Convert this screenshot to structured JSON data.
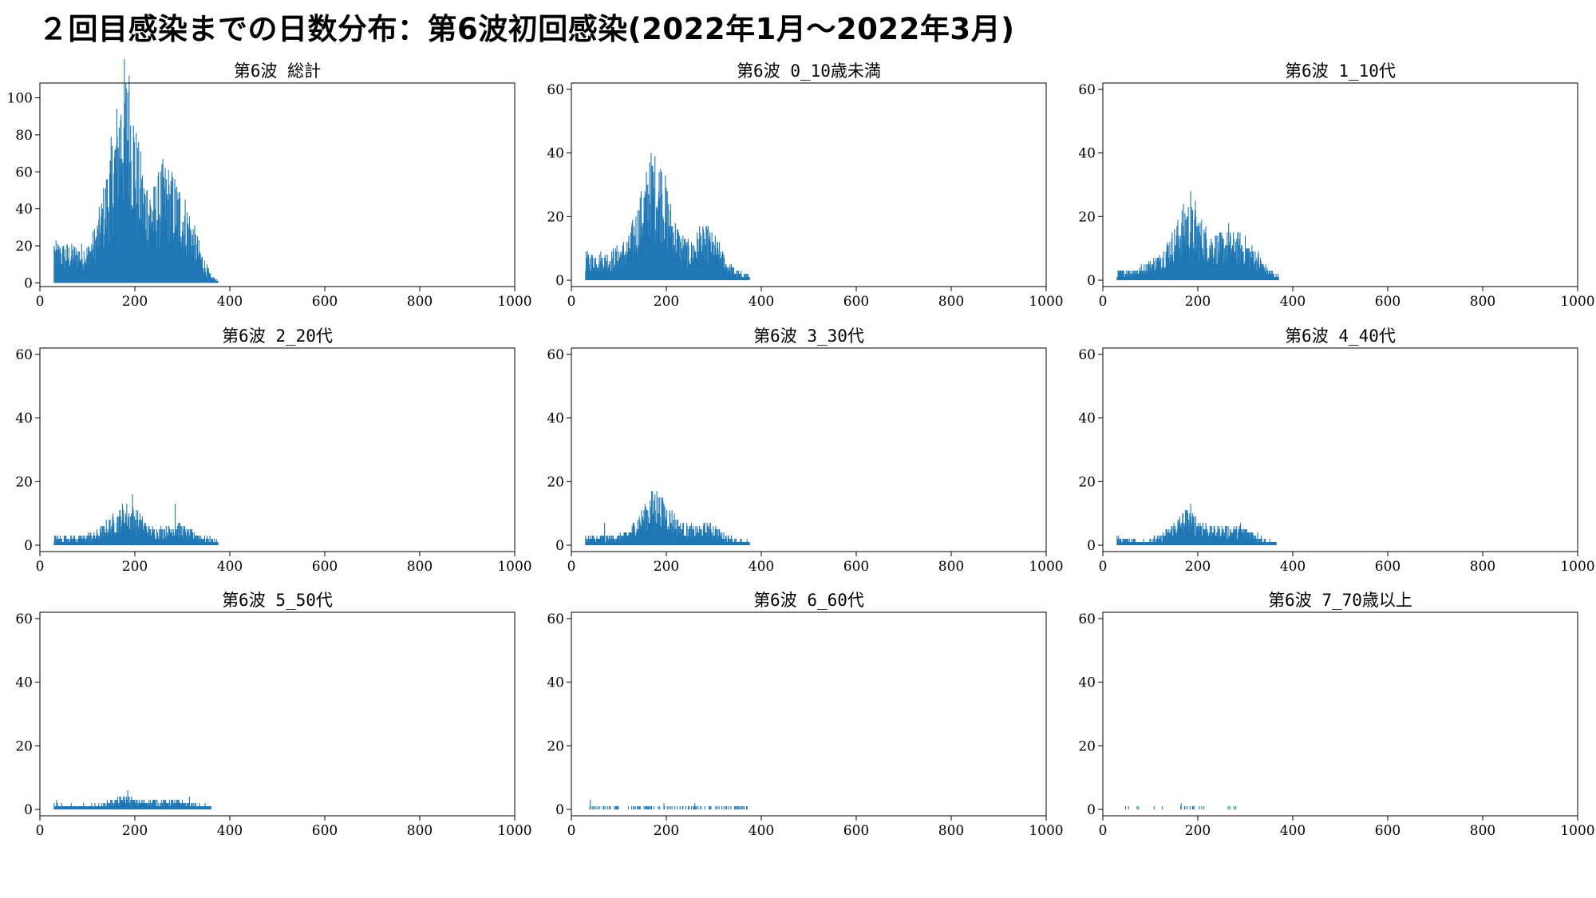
{
  "figure": {
    "suptitle": "２回目感染までの日数分布：第6波初回感染(2022年1月～2022年3月)",
    "bar_color": "#1f77b4"
  },
  "chart_data": [
    {
      "type": "bar",
      "title": "第6波 総計",
      "xlim": [
        0,
        1000
      ],
      "ylim": [
        -2,
        108
      ],
      "xticks": [
        0,
        200,
        400,
        600,
        800,
        1000
      ],
      "yticks": [
        0,
        20,
        40,
        60,
        80,
        100
      ],
      "x_range": [
        30,
        375
      ],
      "profile": [
        [
          30,
          15
        ],
        [
          60,
          14
        ],
        [
          100,
          14
        ],
        [
          120,
          22
        ],
        [
          140,
          40
        ],
        [
          160,
          62
        ],
        [
          175,
          80
        ],
        [
          190,
          78
        ],
        [
          205,
          52
        ],
        [
          220,
          40
        ],
        [
          240,
          35
        ],
        [
          260,
          44
        ],
        [
          280,
          40
        ],
        [
          300,
          34
        ],
        [
          320,
          24
        ],
        [
          340,
          12
        ],
        [
          360,
          3
        ],
        [
          375,
          1
        ]
      ],
      "peaks": [
        [
          30,
          20
        ],
        [
          185,
          103
        ],
        [
          170,
          88
        ],
        [
          260,
          57
        ],
        [
          225,
          50
        ]
      ]
    },
    {
      "type": "bar",
      "title": "第6波 0_10歳未満",
      "xlim": [
        0,
        1000
      ],
      "ylim": [
        -2,
        62
      ],
      "xticks": [
        0,
        200,
        400,
        600,
        800,
        1000
      ],
      "yticks": [
        0,
        20,
        40,
        60
      ],
      "x_range": [
        30,
        375
      ],
      "profile": [
        [
          30,
          6
        ],
        [
          80,
          6
        ],
        [
          120,
          9
        ],
        [
          150,
          20
        ],
        [
          170,
          27
        ],
        [
          190,
          25
        ],
        [
          210,
          16
        ],
        [
          230,
          10
        ],
        [
          250,
          8
        ],
        [
          270,
          11
        ],
        [
          290,
          11
        ],
        [
          310,
          8
        ],
        [
          330,
          4
        ],
        [
          350,
          2
        ],
        [
          375,
          1
        ]
      ],
      "peaks": [
        [
          165,
          37
        ],
        [
          190,
          34
        ],
        [
          270,
          17
        ]
      ]
    },
    {
      "type": "bar",
      "title": "第6波 1_10代",
      "xlim": [
        0,
        1000
      ],
      "ylim": [
        -2,
        62
      ],
      "xticks": [
        0,
        200,
        400,
        600,
        800,
        1000
      ],
      "yticks": [
        0,
        20,
        40,
        60
      ],
      "x_range": [
        30,
        370
      ],
      "profile": [
        [
          30,
          2
        ],
        [
          80,
          3
        ],
        [
          120,
          6
        ],
        [
          150,
          11
        ],
        [
          175,
          17
        ],
        [
          200,
          14
        ],
        [
          230,
          10
        ],
        [
          260,
          10
        ],
        [
          290,
          10
        ],
        [
          320,
          7
        ],
        [
          345,
          3
        ],
        [
          370,
          1
        ]
      ],
      "peaks": [
        [
          185,
          28
        ],
        [
          195,
          25
        ],
        [
          265,
          18
        ]
      ]
    },
    {
      "type": "bar",
      "title": "第6波 2_20代",
      "xlim": [
        0,
        1000
      ],
      "ylim": [
        -2,
        62
      ],
      "xticks": [
        0,
        200,
        400,
        600,
        800,
        1000
      ],
      "yticks": [
        0,
        20,
        40,
        60
      ],
      "x_range": [
        30,
        375
      ],
      "profile": [
        [
          30,
          2
        ],
        [
          80,
          2
        ],
        [
          120,
          3
        ],
        [
          150,
          6
        ],
        [
          180,
          9
        ],
        [
          200,
          8
        ],
        [
          230,
          4
        ],
        [
          260,
          4
        ],
        [
          290,
          5
        ],
        [
          320,
          3
        ],
        [
          350,
          2
        ],
        [
          375,
          1
        ]
      ],
      "peaks": [
        [
          195,
          16
        ],
        [
          285,
          13
        ]
      ]
    },
    {
      "type": "bar",
      "title": "第6波 3_30代",
      "xlim": [
        0,
        1000
      ],
      "ylim": [
        -2,
        62
      ],
      "xticks": [
        0,
        200,
        400,
        600,
        800,
        1000
      ],
      "yticks": [
        0,
        20,
        40,
        60
      ],
      "x_range": [
        30,
        375
      ],
      "profile": [
        [
          30,
          2
        ],
        [
          80,
          2
        ],
        [
          120,
          3
        ],
        [
          150,
          8
        ],
        [
          175,
          12
        ],
        [
          200,
          9
        ],
        [
          230,
          5
        ],
        [
          260,
          4
        ],
        [
          290,
          5
        ],
        [
          320,
          3
        ],
        [
          350,
          1
        ],
        [
          375,
          1
        ]
      ],
      "peaks": [
        [
          180,
          17
        ],
        [
          70,
          7
        ]
      ]
    },
    {
      "type": "bar",
      "title": "第6波 4_40代",
      "xlim": [
        0,
        1000
      ],
      "ylim": [
        -2,
        62
      ],
      "xticks": [
        0,
        200,
        400,
        600,
        800,
        1000
      ],
      "yticks": [
        0,
        20,
        40,
        60
      ],
      "x_range": [
        30,
        365
      ],
      "profile": [
        [
          30,
          2
        ],
        [
          80,
          1
        ],
        [
          120,
          2
        ],
        [
          150,
          5
        ],
        [
          175,
          8
        ],
        [
          200,
          6
        ],
        [
          230,
          4
        ],
        [
          260,
          4
        ],
        [
          290,
          4
        ],
        [
          320,
          3
        ],
        [
          345,
          1
        ],
        [
          365,
          1
        ]
      ],
      "peaks": [
        [
          185,
          13
        ],
        [
          290,
          7
        ]
      ]
    },
    {
      "type": "bar",
      "title": "第6波 5_50代",
      "xlim": [
        0,
        1000
      ],
      "ylim": [
        -2,
        62
      ],
      "xticks": [
        0,
        200,
        400,
        600,
        800,
        1000
      ],
      "yticks": [
        0,
        20,
        40,
        60
      ],
      "x_range": [
        30,
        360
      ],
      "profile": [
        [
          30,
          1
        ],
        [
          80,
          1
        ],
        [
          120,
          1
        ],
        [
          150,
          2
        ],
        [
          180,
          3
        ],
        [
          210,
          2
        ],
        [
          250,
          2
        ],
        [
          290,
          2
        ],
        [
          330,
          1
        ],
        [
          360,
          1
        ]
      ],
      "peaks": [
        [
          185,
          6
        ],
        [
          315,
          4
        ],
        [
          35,
          3
        ]
      ]
    },
    {
      "type": "bar",
      "title": "第6波 6_60代",
      "xlim": [
        0,
        1000
      ],
      "ylim": [
        -2,
        62
      ],
      "xticks": [
        0,
        200,
        400,
        600,
        800,
        1000
      ],
      "yticks": [
        0,
        20,
        40,
        60
      ],
      "x_range": [
        35,
        370
      ],
      "sparse": true,
      "profile": [
        [
          35,
          1
        ],
        [
          370,
          1
        ]
      ],
      "peaks": [
        [
          40,
          3
        ],
        [
          195,
          2
        ],
        [
          260,
          2
        ]
      ]
    },
    {
      "type": "bar",
      "title": "第6波 7_70歳以上",
      "xlim": [
        0,
        1000
      ],
      "ylim": [
        -2,
        62
      ],
      "xticks": [
        0,
        200,
        400,
        600,
        800,
        1000
      ],
      "yticks": [
        0,
        20,
        40,
        60
      ],
      "x_range": [
        45,
        295
      ],
      "sparse": true,
      "sparse_density": 0.08,
      "profile": [
        [
          45,
          1
        ],
        [
          295,
          1
        ]
      ],
      "peaks": [
        [
          165,
          2
        ]
      ]
    }
  ]
}
